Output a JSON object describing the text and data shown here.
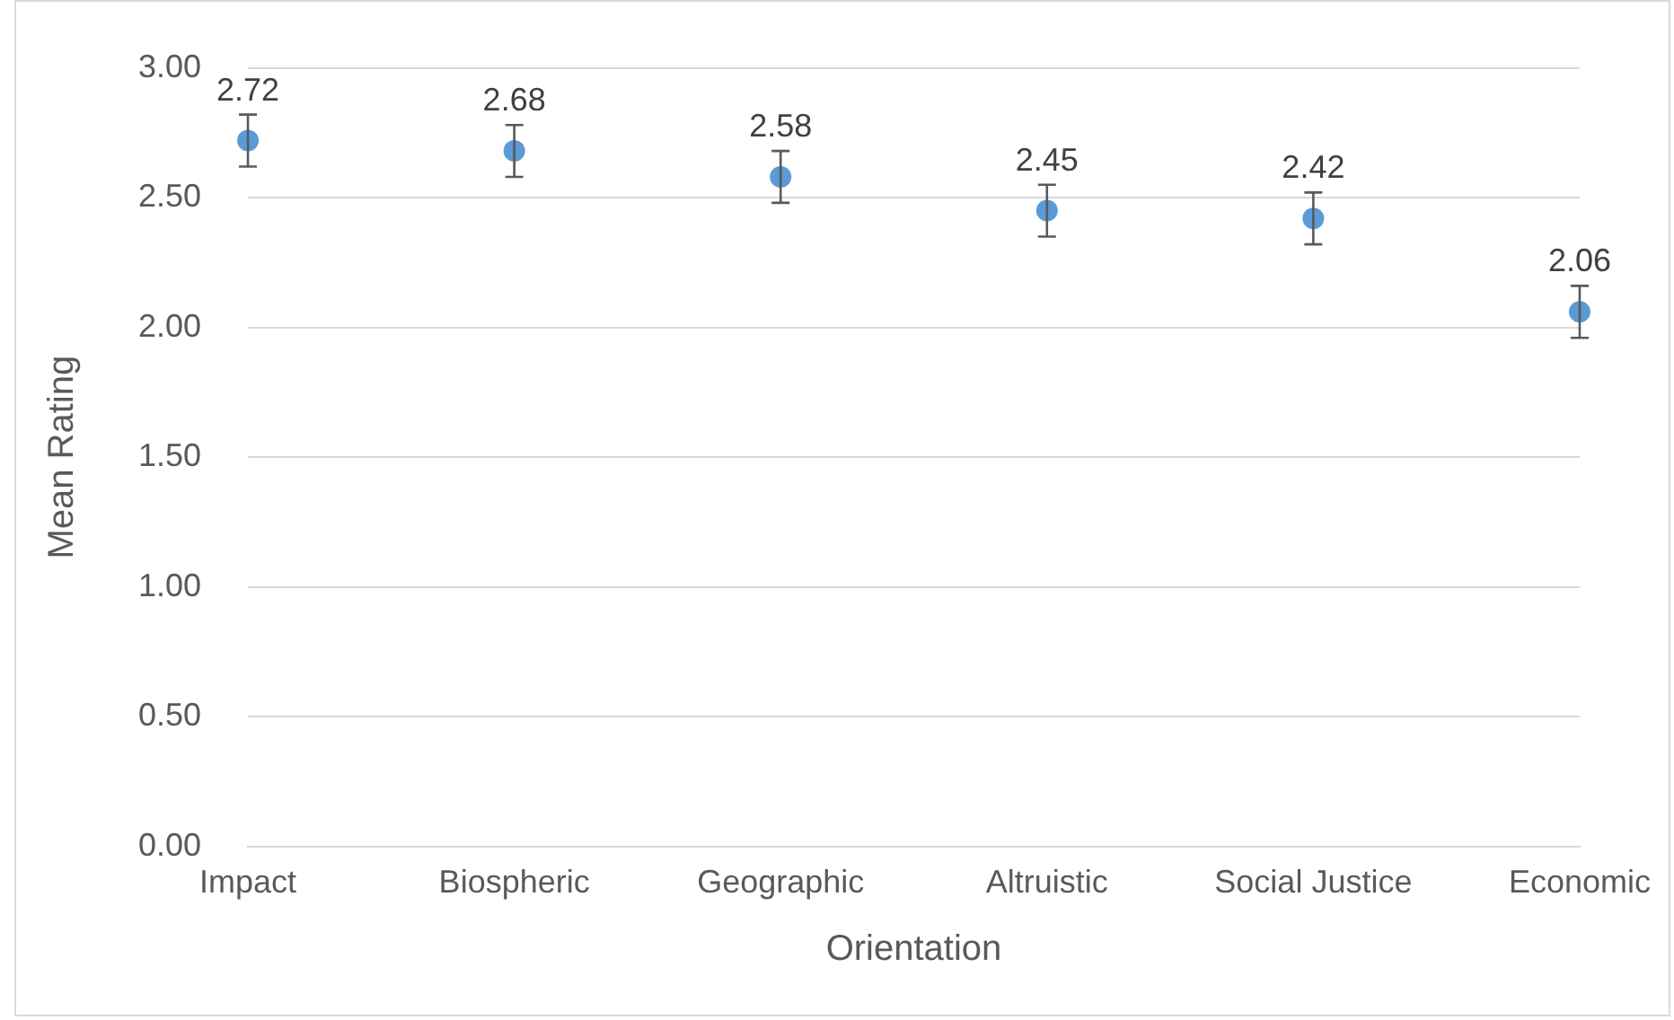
{
  "chart_data": {
    "type": "scatter",
    "xlabel": "Orientation",
    "ylabel": "Mean Rating",
    "categories": [
      "Impact",
      "Biospheric",
      "Geographic",
      "Altruistic",
      "Social Justice",
      "Economic"
    ],
    "values": [
      2.72,
      2.68,
      2.58,
      2.45,
      2.42,
      2.06
    ],
    "errors": [
      0.1,
      0.1,
      0.1,
      0.1,
      0.1,
      0.1
    ],
    "color": "#5b9bd5",
    "marker": "circle",
    "data_labels": true,
    "grid": "y",
    "legend": false,
    "ylim": [
      0,
      3
    ],
    "yticks": [
      {
        "value": 0,
        "label": "0.00"
      },
      {
        "value": 0.5,
        "label": "0.50"
      },
      {
        "value": 1,
        "label": "1.00"
      },
      {
        "value": 1.5,
        "label": "1.50"
      },
      {
        "value": 2,
        "label": "2.00"
      },
      {
        "value": 2.5,
        "label": "2.50"
      },
      {
        "value": 3,
        "label": "3.00"
      }
    ]
  }
}
